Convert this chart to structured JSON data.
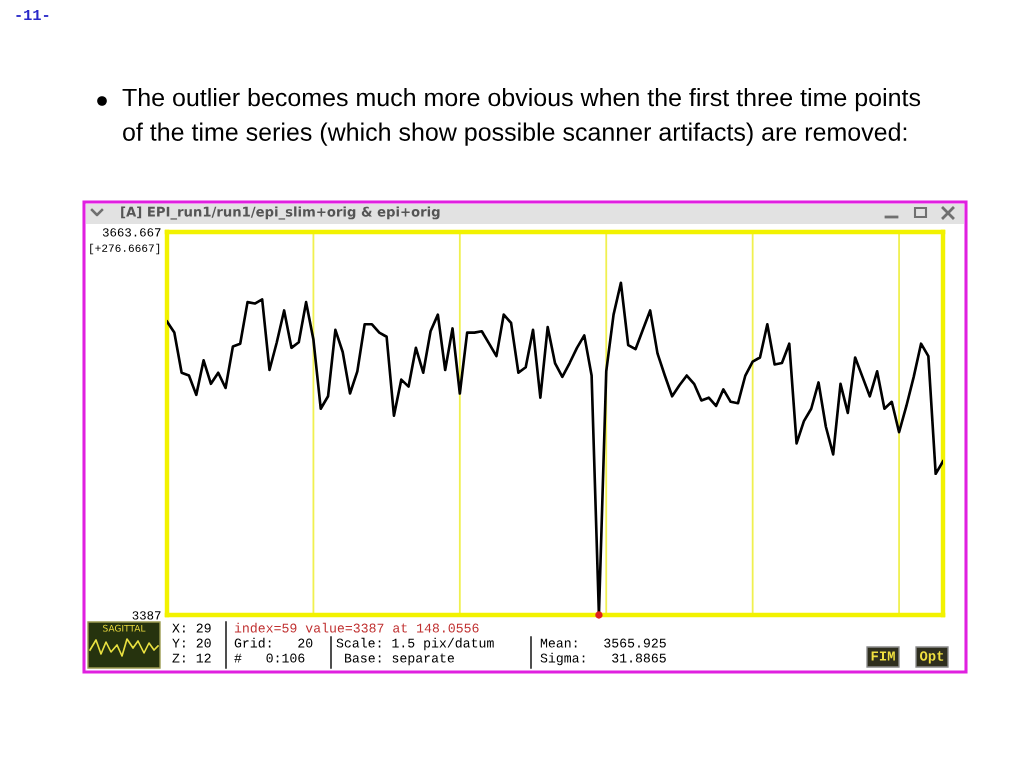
{
  "chart_data": {
    "type": "line",
    "title": "The outlier becomes much more obvious when the first three time points\nof the time series (which show possible scanner artifacts) are removed:",
    "categories": [
      null,
      null,
      null,
      null,
      null,
      null,
      null,
      null,
      null,
      null,
      null,
      null,
      null,
      null,
      null,
      null,
      null,
      null,
      null,
      null,
      null,
      null,
      null,
      null,
      null,
      null,
      null,
      null,
      null,
      null,
      null,
      null,
      null,
      null,
      null,
      null,
      null,
      null,
      null,
      null,
      null,
      null,
      null,
      null,
      null,
      null,
      null,
      null,
      null,
      null,
      null,
      null,
      null,
      null,
      null,
      null,
      null,
      null,
      null,
      null,
      null,
      null,
      null,
      null,
      null,
      null,
      null,
      null,
      null,
      null,
      null,
      null,
      null,
      null,
      null,
      null,
      null,
      null,
      null,
      null,
      null,
      null,
      null,
      null,
      null,
      null,
      null,
      null,
      null,
      null,
      null,
      null,
      null,
      null,
      null,
      null,
      null,
      null,
      null,
      null,
      null,
      null,
      null,
      null,
      null,
      null,
      null
    ],
    "series": [
      {
        "color": "#000000",
        "values": [
          3599,
          3591,
          3562,
          3560,
          3546,
          3571,
          3554,
          3562,
          3551,
          3581,
          3583,
          3613,
          3612,
          3615,
          3564,
          3584,
          3607,
          3580,
          3584,
          3613,
          3586,
          3536,
          3545,
          3593,
          3577,
          3547,
          3563,
          3597,
          3597,
          3591,
          3588,
          3531,
          3557,
          3552,
          3580,
          3562,
          3592,
          3604,
          3564,
          3594,
          3547,
          3591,
          3591,
          3592,
          3583,
          3574,
          3604,
          3598,
          3562,
          3566,
          3593,
          3544,
          3595,
          3569,
          3559,
          3569,
          3580,
          3589,
          3560,
          3387,
          3563,
          3604,
          3627,
          3582,
          3579,
          3593,
          3607,
          3576,
          3560,
          3545,
          3553,
          3560,
          3554,
          3542,
          3544,
          3538,
          3550,
          3541,
          3540,
          3560,
          3570,
          3573,
          3597,
          3568,
          3569,
          3583,
          3511,
          3527,
          3536,
          3555,
          3523,
          3503,
          3554,
          3533,
          3573,
          3559,
          3545,
          3563,
          3536,
          3541,
          3519,
          3538,
          3559,
          3583,
          3574,
          3489,
          3498
        ]
      },
      {
        "type": "scatter",
        "color": "#e02020",
        "marker": "circle",
        "values": [
          null,
          null,
          null,
          null,
          null,
          null,
          null,
          null,
          null,
          null,
          null,
          null,
          null,
          null,
          null,
          null,
          null,
          null,
          null,
          null,
          null,
          null,
          null,
          null,
          null,
          null,
          null,
          null,
          null,
          null,
          null,
          null,
          null,
          null,
          null,
          null,
          null,
          null,
          null,
          null,
          null,
          null,
          null,
          null,
          null,
          null,
          null,
          null,
          null,
          null,
          null,
          null,
          null,
          null,
          null,
          null,
          null,
          null,
          null,
          3387,
          null,
          null,
          null,
          null,
          null,
          null,
          null,
          null,
          null,
          null,
          null,
          null,
          null,
          null,
          null,
          null,
          null,
          null,
          null,
          null,
          null,
          null,
          null,
          null,
          null,
          null,
          null,
          null,
          null,
          null,
          null,
          null,
          null,
          null,
          null,
          null,
          null,
          null,
          null,
          null,
          null,
          null,
          null,
          null,
          null,
          null,
          null
        ]
      }
    ],
    "ylim": [
      3387,
      3663.667
    ],
    "yticks": [
      3387,
      3663.667
    ],
    "tick_labels": "y",
    "grid": "x",
    "annotations": [
      "-11-",
      "[A] EPI_run1/run1/epi_slim+orig & epi+orig",
      "[+276.6667]",
      "SAGITTAL",
      "X: 29",
      "Y: 20",
      "Z: 12",
      "index=59 value=3387 at 148.0556",
      "Grid:   20",
      "#   0:106",
      "Scale: 1.5 pix/datum",
      "Base: separate",
      "Mean:   3565.925",
      "Sigma:   31.8865",
      "FIM",
      "Opt"
    ]
  }
}
